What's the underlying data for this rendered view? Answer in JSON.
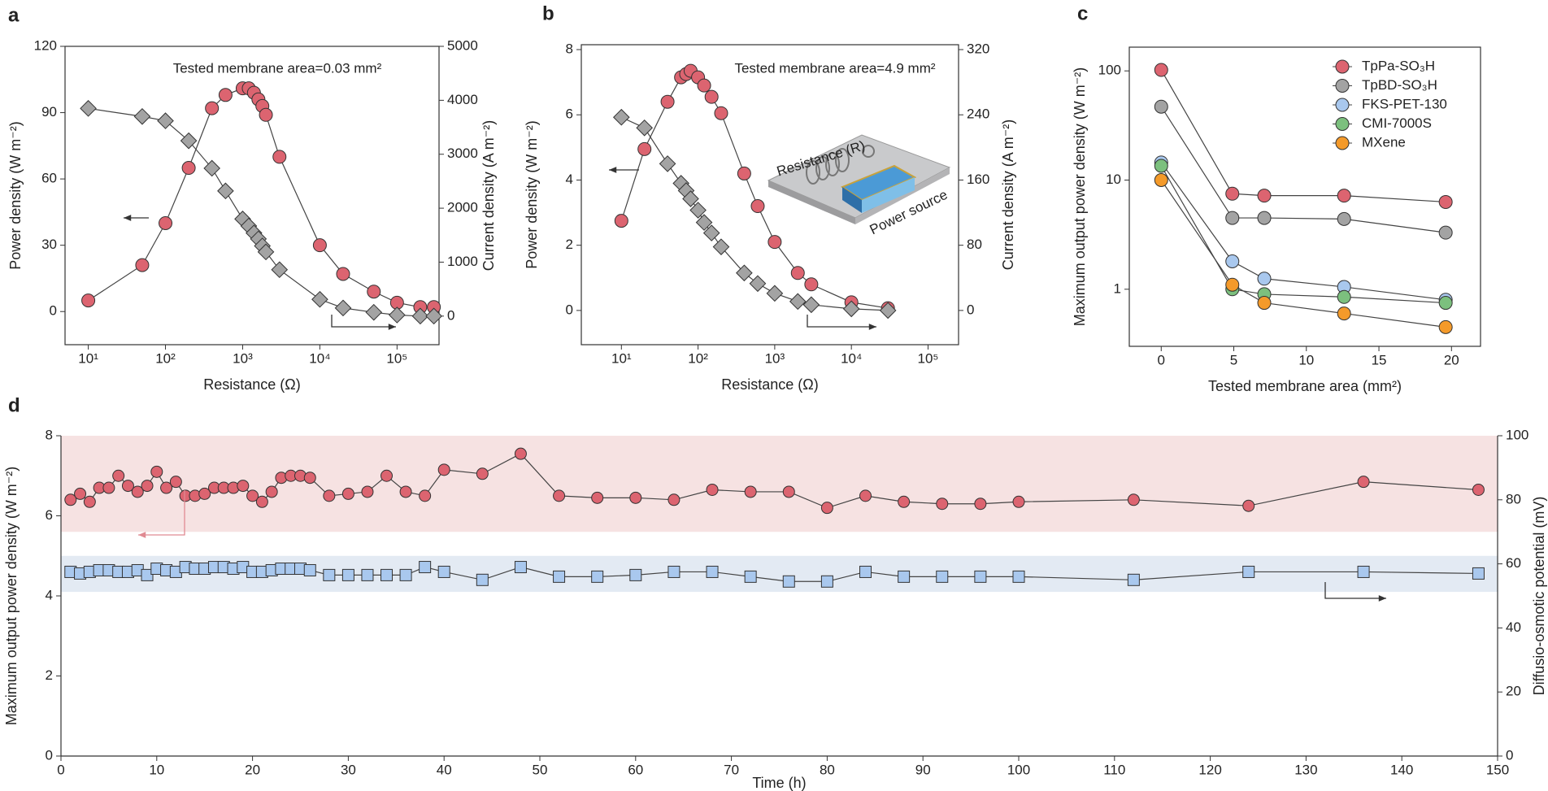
{
  "chart_data": [
    {
      "type": "line",
      "panel": "a",
      "xlabel": "Resistance (Ω)",
      "ylabel": "Power density (W m⁻²)",
      "y2label": "Current density (A m⁻²)",
      "annotations": [
        "Tested membrane area=0.03 mm²"
      ],
      "xscale": "log",
      "xlim": [
        5,
        350000
      ],
      "xticks": [
        {
          "value": 10,
          "label": "10¹"
        },
        {
          "value": 100,
          "label": "10²"
        },
        {
          "value": 1000,
          "label": "10³"
        },
        {
          "value": 10000,
          "label": "10⁴"
        },
        {
          "value": 100000,
          "label": "10⁵"
        }
      ],
      "ylim": [
        -15,
        120
      ],
      "yticks": [
        0,
        30,
        60,
        90,
        120
      ],
      "y2lim": [
        -530,
        5000
      ],
      "y2ticks": [
        0,
        1000,
        2000,
        3000,
        4000,
        5000
      ],
      "x": [
        10,
        50,
        100,
        200,
        400,
        600,
        1000,
        1200,
        1400,
        1600,
        1800,
        2000,
        3000,
        10000,
        20000,
        50000,
        100000,
        200000,
        300000
      ],
      "series": [
        {
          "color": "#dc6470",
          "marker": "circle",
          "values": [
            5,
            21,
            40,
            65,
            92,
            98,
            101,
            101,
            99,
            96,
            93,
            89,
            70,
            30,
            17,
            9,
            4,
            2,
            2
          ]
        },
        {
          "color": "#a3a3a3",
          "marker": "diamond",
          "axis": "y2",
          "values": [
            3850,
            3700,
            3620,
            3250,
            2740,
            2320,
            1800,
            1670,
            1540,
            1430,
            1300,
            1190,
            860,
            310,
            150,
            70,
            20,
            0,
            0
          ]
        }
      ]
    },
    {
      "type": "line",
      "panel": "b",
      "xlabel": "Resistance (Ω)",
      "ylabel": "Power density (W m⁻²)",
      "y2label": "Current density (A m⁻²)",
      "annotations": [
        "Tested membrane area=4.9 mm²",
        "Resistance (R)",
        "Power source"
      ],
      "xscale": "log",
      "xlim": [
        3,
        250000
      ],
      "xticks": [
        {
          "value": 10,
          "label": "10¹"
        },
        {
          "value": 100,
          "label": "10²"
        },
        {
          "value": 1000,
          "label": "10³"
        },
        {
          "value": 10000,
          "label": "10⁴"
        },
        {
          "value": 100000,
          "label": "10⁵"
        }
      ],
      "ylim": [
        -1.05,
        8.15
      ],
      "yticks": [
        0,
        2,
        4,
        6,
        8
      ],
      "y2lim": [
        -42,
        326
      ],
      "y2ticks": [
        0,
        80,
        160,
        240,
        320
      ],
      "x": [
        10,
        20,
        40,
        60,
        70,
        80,
        100,
        120,
        150,
        200,
        400,
        600,
        1000,
        2000,
        3000,
        10000,
        30000
      ],
      "series": [
        {
          "color": "#dc6470",
          "marker": "circle",
          "values": [
            2.75,
            4.95,
            6.4,
            7.15,
            7.25,
            7.35,
            7.15,
            6.9,
            6.55,
            6.05,
            4.2,
            3.2,
            2.1,
            1.15,
            0.8,
            0.25,
            0.07
          ]
        },
        {
          "color": "#a3a3a3",
          "marker": "diamond",
          "axis": "y2",
          "values": [
            237,
            224,
            180,
            156,
            147,
            137,
            123,
            108,
            95,
            78,
            46,
            33,
            21,
            11,
            7,
            2,
            0
          ]
        }
      ]
    },
    {
      "type": "line",
      "panel": "c",
      "xlabel": "Tested membrane area (mm²)",
      "ylabel": "Maximum output power density (W m⁻²)",
      "xlim": [
        -2.2,
        22
      ],
      "xticks": [
        0,
        5,
        10,
        15,
        20
      ],
      "yscale": "log",
      "ylim": [
        0.3,
        165
      ],
      "yticks": [
        1,
        10,
        100
      ],
      "legend": "upper right",
      "x": [
        0,
        4.9,
        7.1,
        12.6,
        19.6
      ],
      "series": [
        {
          "name": "TpPa-SO₃H",
          "color": "#dc6470",
          "marker": "circle",
          "values": [
            102,
            7.5,
            7.2,
            7.2,
            6.3
          ]
        },
        {
          "name": "TpBD-SO₃H",
          "color": "#a3a3a3",
          "marker": "circle",
          "values": [
            47,
            4.5,
            4.5,
            4.4,
            3.3
          ]
        },
        {
          "name": "FKS-PET-130",
          "color": "#a9c8ee",
          "marker": "circle",
          "values": [
            14.5,
            1.8,
            1.25,
            1.05,
            0.8
          ]
        },
        {
          "name": "CMI-7000S",
          "color": "#7cc07e",
          "marker": "circle",
          "values": [
            13.5,
            1.0,
            0.9,
            0.85,
            0.75
          ]
        },
        {
          "name": "MXene",
          "color": "#f49a2a",
          "marker": "circle",
          "values": [
            10,
            1.1,
            0.75,
            0.6,
            0.45
          ]
        }
      ]
    },
    {
      "type": "line",
      "panel": "d",
      "xlabel": "Time (h)",
      "ylabel": "Maximum output power density (W m⁻²)",
      "y2label": "Diffusio-osmotic potential (mV)",
      "xlim": [
        0,
        150
      ],
      "xticks": [
        0,
        10,
        20,
        30,
        40,
        50,
        60,
        70,
        80,
        90,
        100,
        110,
        120,
        130,
        140,
        150
      ],
      "ylim": [
        0,
        8
      ],
      "yticks": [
        0,
        2,
        4,
        6,
        8
      ],
      "y2lim": [
        0,
        100
      ],
      "y2ticks": [
        0,
        20,
        40,
        60,
        80,
        100
      ],
      "bands": [
        {
          "from": 5.6,
          "to": 8,
          "color": "#f6e2e2"
        },
        {
          "from": 4.1,
          "to": 5.0,
          "color": "#e3eaf3"
        }
      ],
      "x": [
        1,
        2,
        3,
        4,
        5,
        6,
        7,
        8,
        9,
        10,
        11,
        12,
        13,
        14,
        15,
        16,
        17,
        18,
        19,
        20,
        21,
        22,
        23,
        24,
        25,
        26,
        28,
        30,
        32,
        34,
        36,
        38,
        40,
        44,
        48,
        52,
        56,
        60,
        64,
        68,
        72,
        76,
        80,
        84,
        88,
        92,
        96,
        100,
        112,
        124,
        136,
        148
      ],
      "series": [
        {
          "color": "#dc6470",
          "marker": "circle",
          "values": [
            6.4,
            6.55,
            6.35,
            6.7,
            6.7,
            7.0,
            6.75,
            6.6,
            6.75,
            7.1,
            6.7,
            6.85,
            6.5,
            6.5,
            6.55,
            6.7,
            6.7,
            6.7,
            6.75,
            6.5,
            6.35,
            6.6,
            6.95,
            7.0,
            7.0,
            6.95,
            6.5,
            6.55,
            6.6,
            7.0,
            6.6,
            6.5,
            7.15,
            7.05,
            7.55,
            6.5,
            6.45,
            6.45,
            6.4,
            6.65,
            6.6,
            6.6,
            6.2,
            6.5,
            6.35,
            6.3,
            6.3,
            6.35,
            6.4,
            6.25,
            6.85,
            6.65
          ]
        },
        {
          "color": "#a9c8ee",
          "marker": "square",
          "axis": "y2",
          "values": [
            57.5,
            57,
            57.5,
            58,
            58,
            57.5,
            57.5,
            58,
            56.5,
            58.5,
            58,
            57.5,
            59,
            58.5,
            58.5,
            59,
            59,
            58.5,
            59,
            57.5,
            57.5,
            58,
            58.5,
            58.5,
            58.5,
            58,
            56.5,
            56.5,
            56.5,
            56.5,
            56.5,
            59,
            57.5,
            55,
            59,
            56,
            56,
            56.5,
            57.5,
            57.5,
            56,
            54.5,
            54.5,
            57.5,
            56,
            56,
            56,
            56,
            55,
            57.5,
            57.5,
            57
          ]
        }
      ]
    }
  ]
}
